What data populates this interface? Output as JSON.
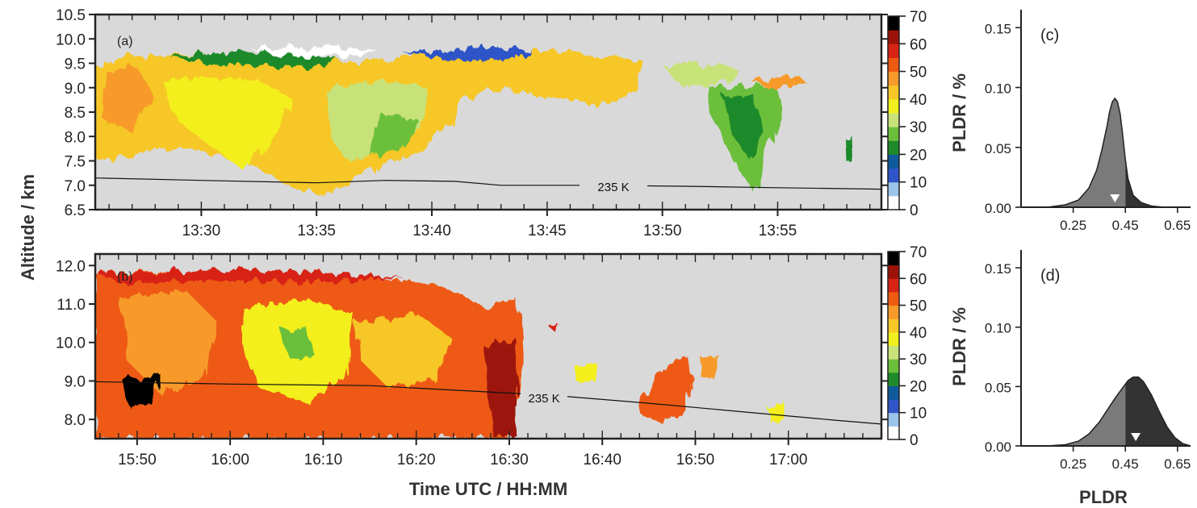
{
  "colors": {
    "background_no_signal": "#d9d9d9",
    "colorbar": [
      "#ffffff",
      "#9cc3ea",
      "#2f55c8",
      "#0e5a9a",
      "#1f8a2a",
      "#6cbf3a",
      "#c8e27a",
      "#f2ef1e",
      "#f6c726",
      "#f79a2b",
      "#ee5a12",
      "#d82414",
      "#9c1208",
      "#000000"
    ],
    "pdf_light": "#7a7a7a",
    "pdf_dark": "#333333",
    "marker": "#ffffff"
  },
  "labels": {
    "ylabel_left": "Altitude / km",
    "xlabel_bottom": "Time UTC / HH:MM",
    "cbar_label_a": "PLDR / %",
    "cbar_label_b": "PLDR / %",
    "xlabel_pdf": "PLDR",
    "panel_a": "(a)",
    "panel_b": "(b)",
    "panel_c": "(c)",
    "panel_d": "(d)",
    "contour_a": "235 K",
    "contour_b": "235 K"
  },
  "chart_data": [
    {
      "id": "a",
      "type": "heatmap",
      "panel_label": "(a)",
      "x_ticks": [
        "13:30",
        "13:35",
        "13:40",
        "13:45",
        "13:50",
        "13:55"
      ],
      "x_tick_minutes": [
        30,
        35,
        40,
        45,
        50,
        55
      ],
      "xlim_minutes": [
        25.4,
        59.5
      ],
      "y_ticks": [
        "6.5",
        "7.0",
        "7.5",
        "8.0",
        "8.5",
        "9.0",
        "9.5",
        "10.0",
        "10.5"
      ],
      "ylim": [
        6.5,
        10.5
      ],
      "ylabel": "Altitude / km",
      "colorbar": {
        "label": "PLDR / %",
        "ticks": [
          "0",
          "10",
          "20",
          "30",
          "40",
          "50",
          "60",
          "70"
        ],
        "range": [
          0,
          70
        ]
      },
      "contour": {
        "label": "235 K",
        "x_minutes": [
          25.4,
          30,
          35,
          38,
          41,
          43,
          47,
          51,
          55,
          59.5
        ],
        "altitude_km": [
          7.15,
          7.1,
          7.05,
          7.1,
          7.08,
          7.0,
          7.0,
          6.98,
          6.95,
          6.92
        ]
      },
      "cloud_regions": [
        {
          "x_start": 25.4,
          "x_end": 41.5,
          "base_km": 7.2,
          "top_km": 9.7,
          "pldr_typical": 45
        },
        {
          "x_start": 38.0,
          "x_end": 52.0,
          "base_km": 8.8,
          "top_km": 9.8,
          "pldr_typical": 40
        },
        {
          "x_start": 51.5,
          "x_end": 55.5,
          "base_km": 7.0,
          "top_km": 9.3,
          "pldr_typical": 30
        }
      ]
    },
    {
      "id": "b",
      "type": "heatmap",
      "panel_label": "(b)",
      "x_ticks": [
        "15:50",
        "16:00",
        "16:10",
        "16:20",
        "16:30",
        "16:40",
        "16:50",
        "17:00"
      ],
      "x_tick_minutes": [
        50,
        60,
        70,
        80,
        90,
        100,
        110,
        120
      ],
      "xlim_minutes": [
        45.5,
        130
      ],
      "y_ticks": [
        "8.0",
        "9.0",
        "10.0",
        "11.0",
        "12.0"
      ],
      "ylim": [
        7.5,
        12.3
      ],
      "ylabel": "Altitude / km",
      "colorbar": {
        "label": "PLDR / %",
        "ticks": [
          "0",
          "10",
          "20",
          "30",
          "40",
          "50",
          "60",
          "70"
        ],
        "range": [
          0,
          70
        ]
      },
      "contour": {
        "label": "235 K",
        "x_minutes": [
          45.5,
          60,
          75,
          85,
          95,
          105,
          115,
          125,
          130
        ],
        "altitude_km": [
          8.98,
          8.92,
          8.88,
          8.75,
          8.62,
          8.42,
          8.2,
          7.98,
          7.88
        ]
      },
      "cloud_regions": [
        {
          "x_start": 45.5,
          "x_end": 91.0,
          "base_km": 7.5,
          "top_km": 12.0,
          "pldr_typical": 55
        },
        {
          "x_start": 103.0,
          "x_end": 110.5,
          "base_km": 7.8,
          "top_km": 9.9,
          "pldr_typical": 50
        }
      ]
    },
    {
      "id": "c",
      "type": "area",
      "panel_label": "(c)",
      "xlabel": "",
      "x_ticks": [
        "0.25",
        "0.45",
        "0.65"
      ],
      "xlim": [
        0.05,
        0.7
      ],
      "y_ticks": [
        "0.00",
        "0.05",
        "0.10",
        "0.15"
      ],
      "ylim": [
        0.0,
        0.165
      ],
      "split_at": 0.45,
      "marker_x": 0.41,
      "x": [
        0.05,
        0.15,
        0.22,
        0.27,
        0.31,
        0.34,
        0.36,
        0.38,
        0.39,
        0.4,
        0.41,
        0.42,
        0.43,
        0.44,
        0.45,
        0.46,
        0.48,
        0.51,
        0.55,
        0.6,
        0.7
      ],
      "y": [
        0.0,
        0.0,
        0.002,
        0.006,
        0.016,
        0.031,
        0.048,
        0.068,
        0.08,
        0.088,
        0.091,
        0.088,
        0.078,
        0.06,
        0.04,
        0.024,
        0.01,
        0.004,
        0.001,
        0.0,
        0.0
      ]
    },
    {
      "id": "d",
      "type": "area",
      "panel_label": "(d)",
      "xlabel": "PLDR",
      "x_ticks": [
        "0.25",
        "0.45",
        "0.65"
      ],
      "xlim": [
        0.05,
        0.7
      ],
      "y_ticks": [
        "0.00",
        "0.05",
        "0.10",
        "0.15"
      ],
      "ylim": [
        0.0,
        0.165
      ],
      "split_at": 0.45,
      "marker_x": 0.49,
      "x": [
        0.05,
        0.15,
        0.22,
        0.27,
        0.31,
        0.35,
        0.38,
        0.41,
        0.44,
        0.46,
        0.48,
        0.5,
        0.52,
        0.55,
        0.58,
        0.61,
        0.64,
        0.67,
        0.7
      ],
      "y": [
        0.0,
        0.0,
        0.001,
        0.004,
        0.01,
        0.02,
        0.03,
        0.04,
        0.049,
        0.055,
        0.058,
        0.058,
        0.054,
        0.043,
        0.029,
        0.016,
        0.007,
        0.002,
        0.0
      ]
    }
  ]
}
